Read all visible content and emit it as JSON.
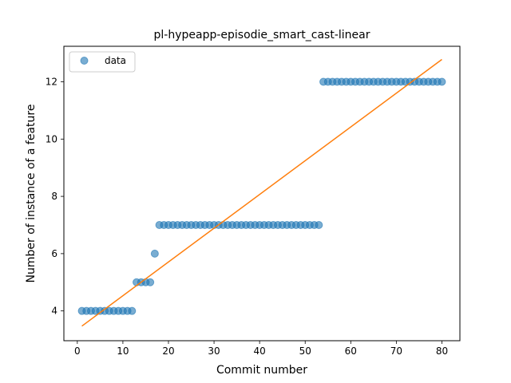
{
  "chart_data": {
    "type": "scatter",
    "title": "pl-hypeapp-episodie_smart_cast-linear",
    "xlabel": "Commit number",
    "ylabel": "Number of instance of a feature",
    "xlim": [
      -2.95,
      83.95
    ],
    "ylim": [
      2.96,
      13.24
    ],
    "xticks": [
      0,
      10,
      20,
      30,
      40,
      50,
      60,
      70,
      80
    ],
    "yticks": [
      4,
      6,
      8,
      10,
      12
    ],
    "grid": false,
    "legend": {
      "placement": "top-left",
      "entries": [
        "data"
      ]
    },
    "series": [
      {
        "name": "data",
        "kind": "scatter",
        "color": "#1f77b4",
        "x": [
          1,
          2,
          3,
          4,
          5,
          6,
          7,
          8,
          9,
          10,
          11,
          12,
          13,
          14,
          15,
          16,
          17,
          18,
          19,
          20,
          21,
          22,
          23,
          24,
          25,
          26,
          27,
          28,
          29,
          30,
          31,
          32,
          33,
          34,
          35,
          36,
          37,
          38,
          39,
          40,
          41,
          42,
          43,
          44,
          45,
          46,
          47,
          48,
          49,
          50,
          51,
          52,
          53,
          54,
          55,
          56,
          57,
          58,
          59,
          60,
          61,
          62,
          63,
          64,
          65,
          66,
          67,
          68,
          69,
          70,
          71,
          72,
          73,
          74,
          75,
          76,
          77,
          78,
          79,
          80
        ],
        "y": [
          4,
          4,
          4,
          4,
          4,
          4,
          4,
          4,
          4,
          4,
          4,
          4,
          5,
          5,
          5,
          5,
          6,
          7,
          7,
          7,
          7,
          7,
          7,
          7,
          7,
          7,
          7,
          7,
          7,
          7,
          7,
          7,
          7,
          7,
          7,
          7,
          7,
          7,
          7,
          7,
          7,
          7,
          7,
          7,
          7,
          7,
          7,
          7,
          7,
          7,
          7,
          7,
          7,
          12,
          12,
          12,
          12,
          12,
          12,
          12,
          12,
          12,
          12,
          12,
          12,
          12,
          12,
          12,
          12,
          12,
          12,
          12,
          12,
          12,
          12,
          12,
          12,
          12,
          12,
          12
        ]
      },
      {
        "kind": "line",
        "color": "#ff7f0e",
        "x": [
          1,
          80
        ],
        "y": [
          3.47,
          12.78
        ]
      }
    ]
  }
}
